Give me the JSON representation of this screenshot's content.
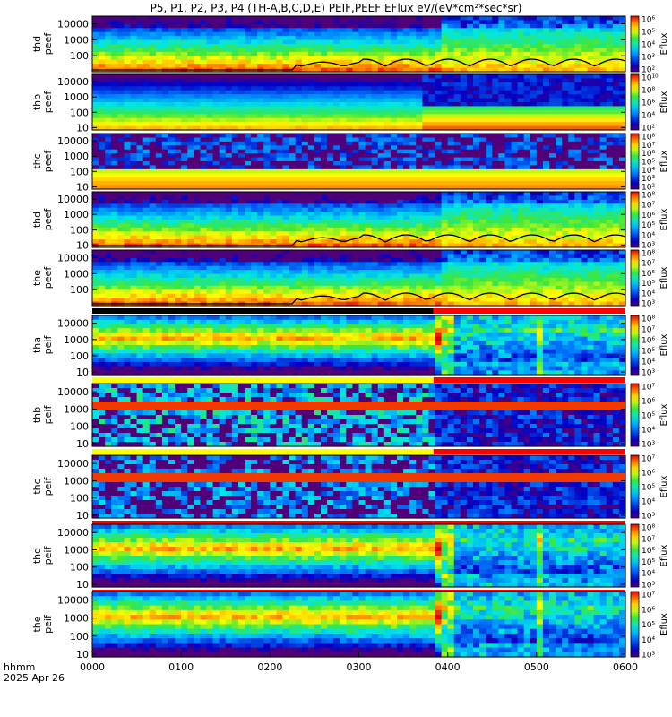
{
  "title": "P5, P1, P2, P3, P4 (TH-A,B,C,D,E) PEIF,PEEF EFlux eV/(eV*cm²*sec*sr)",
  "footer": {
    "time_label": "hhmm",
    "date_label": "2025 Apr 26"
  },
  "colors": {
    "status_red": "#ff0000",
    "status_yellow": "#ffff00",
    "curve": "#000000"
  },
  "chart_data": {
    "type": "heatmap",
    "x_axis": {
      "label": "hhmm",
      "range": [
        "0000",
        "0600"
      ],
      "ticks": [
        "0000",
        "0100",
        "0200",
        "0300",
        "0400",
        "0500",
        "0600"
      ]
    },
    "colorbar_label": "Eflux",
    "panels": [
      {
        "ylabel": [
          "thd",
          "peef"
        ],
        "yticks": [
          "10000",
          "1000",
          "100"
        ],
        "yrange": [
          10,
          30000
        ],
        "cbar_ticks": [
          "10⁶",
          "10⁵",
          "10⁴",
          "10³",
          "10²"
        ],
        "cbar_range": [
          2,
          6.5
        ],
        "status_bar": null,
        "has_curve": true,
        "mode": "electron",
        "seed": 11
      },
      {
        "ylabel": [
          "thb",
          "peef"
        ],
        "yticks": [
          "10000",
          "1000",
          "100",
          "10"
        ],
        "yrange": [
          7,
          30000
        ],
        "cbar_ticks": [
          "10¹⁰",
          "10⁸",
          "10⁶",
          "10⁴",
          "10²"
        ],
        "cbar_range": [
          1.5,
          10.5
        ],
        "status_bar": null,
        "has_curve": false,
        "mode": "thb_e",
        "seed": 23
      },
      {
        "ylabel": [
          "thc",
          "peef"
        ],
        "yticks": [
          "10000",
          "1000",
          "100",
          "10"
        ],
        "yrange": [
          7,
          30000
        ],
        "cbar_ticks": [
          "10⁸",
          "10⁷",
          "10⁶",
          "10⁵",
          "10⁴",
          "10³",
          "10²"
        ],
        "cbar_range": [
          1.5,
          8.5
        ],
        "status_bar": null,
        "has_curve": false,
        "mode": "thc_e",
        "seed": 37
      },
      {
        "ylabel": [
          "thd",
          "peef"
        ],
        "yticks": [
          "10000",
          "1000",
          "100",
          "10"
        ],
        "yrange": [
          7,
          30000
        ],
        "cbar_ticks": [
          "10⁸",
          "10⁷",
          "10⁶",
          "10⁵",
          "10⁴",
          "10³"
        ],
        "cbar_range": [
          2.5,
          8.5
        ],
        "status_bar": null,
        "has_curve": true,
        "mode": "electron",
        "seed": 41
      },
      {
        "ylabel": [
          "the",
          "peef"
        ],
        "yticks": [
          "10000",
          "1000",
          "100"
        ],
        "yrange": [
          10,
          30000
        ],
        "cbar_ticks": [
          "10⁸",
          "10⁷",
          "10⁶",
          "10⁵",
          "10⁴",
          "10³"
        ],
        "cbar_range": [
          2.5,
          8.5
        ],
        "status_bar": "black_red",
        "has_curve": true,
        "mode": "electron",
        "seed": 53
      },
      {
        "ylabel": [
          "tha",
          "peif"
        ],
        "yticks": [
          "10000",
          "1000",
          "100",
          "10"
        ],
        "yrange": [
          7,
          30000
        ],
        "cbar_ticks": [
          "10⁸",
          "10⁷",
          "10⁶",
          "10⁵",
          "10⁴",
          "10³"
        ],
        "cbar_range": [
          2.5,
          8.5
        ],
        "status_bar": "yellow_red",
        "has_curve": false,
        "mode": "ion",
        "seed": 61
      },
      {
        "ylabel": [
          "thb",
          "peif"
        ],
        "yticks": [
          "10000",
          "1000",
          "100",
          "10"
        ],
        "yrange": [
          7,
          30000
        ],
        "cbar_ticks": [
          "10⁷",
          "10⁶",
          "10⁵",
          "10⁴",
          "10³"
        ],
        "cbar_range": [
          2.5,
          7.5
        ],
        "status_bar": "yellow_red",
        "has_curve": false,
        "mode": "thb_i",
        "seed": 71
      },
      {
        "ylabel": [
          "thc",
          "peif"
        ],
        "yticks": [
          "10000",
          "1000",
          "100",
          "10"
        ],
        "yrange": [
          7,
          30000
        ],
        "cbar_ticks": [
          "10⁷",
          "10⁶",
          "10⁵",
          "10⁴",
          "10³"
        ],
        "cbar_range": [
          2.5,
          7.5
        ],
        "status_bar": "red",
        "has_curve": false,
        "mode": "thc_i",
        "seed": 83
      },
      {
        "ylabel": [
          "thd",
          "peif"
        ],
        "yticks": [
          "10000",
          "1000",
          "100",
          "10"
        ],
        "yrange": [
          7,
          30000
        ],
        "cbar_ticks": [
          "10⁸",
          "10⁷",
          "10⁶",
          "10⁵",
          "10⁴",
          "10³"
        ],
        "cbar_range": [
          2.5,
          8.5
        ],
        "status_bar": "red",
        "has_curve": false,
        "mode": "ion",
        "seed": 97
      },
      {
        "ylabel": [
          "the",
          "peif"
        ],
        "yticks": [
          "10000",
          "1000",
          "100",
          "10"
        ],
        "yrange": [
          7,
          30000
        ],
        "cbar_ticks": [
          "10⁷",
          "10⁶",
          "10⁵",
          "10⁴",
          "10³"
        ],
        "cbar_range": [
          2.5,
          7.5
        ],
        "status_bar": null,
        "has_curve": false,
        "mode": "ion",
        "seed": 101
      }
    ]
  }
}
